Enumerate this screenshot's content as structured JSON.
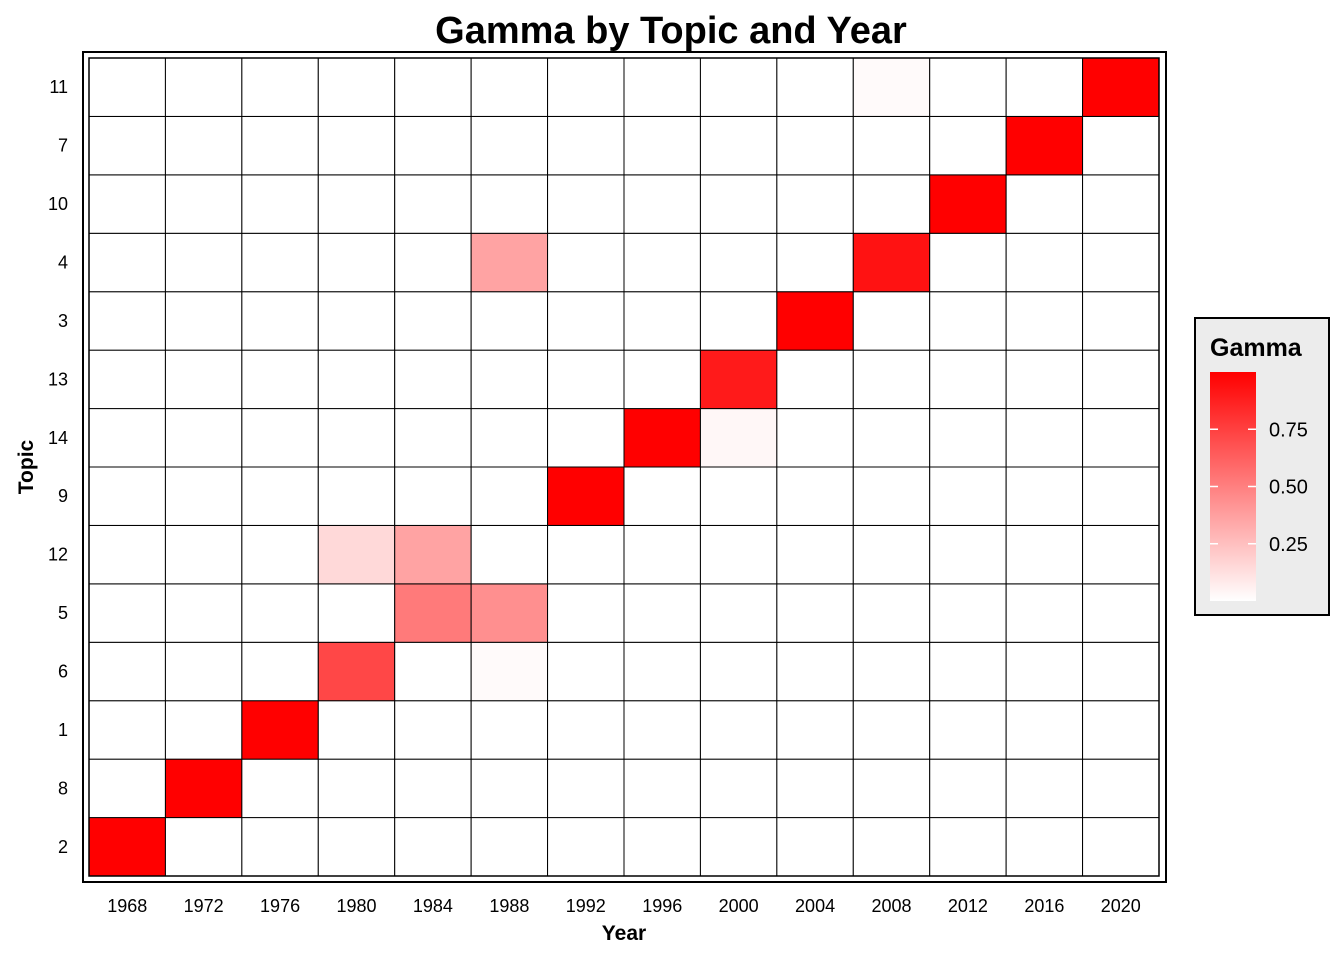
{
  "chart_data": {
    "type": "heatmap",
    "title": "Gamma by Topic and Year",
    "xlabel": "Year",
    "ylabel": "Topic",
    "x": [
      "1968",
      "1972",
      "1976",
      "1980",
      "1984",
      "1988",
      "1992",
      "1996",
      "2000",
      "2004",
      "2008",
      "2012",
      "2016",
      "2020"
    ],
    "y": [
      "2",
      "8",
      "1",
      "6",
      "5",
      "12",
      "9",
      "14",
      "13",
      "3",
      "4",
      "10",
      "7",
      "11"
    ],
    "values": [
      [
        1.0,
        0,
        0,
        0,
        0,
        0,
        0,
        0,
        0,
        0,
        0,
        0,
        0,
        0
      ],
      [
        0,
        1.0,
        0,
        0,
        0,
        0,
        0,
        0,
        0,
        0,
        0,
        0,
        0,
        0
      ],
      [
        0,
        0,
        1.0,
        0,
        0,
        0,
        0,
        0,
        0,
        0,
        0,
        0,
        0,
        0
      ],
      [
        0,
        0,
        0,
        0.72,
        0,
        0.02,
        0,
        0,
        0,
        0,
        0,
        0,
        0,
        0
      ],
      [
        0,
        0,
        0,
        0,
        0.52,
        0.44,
        0,
        0,
        0,
        0,
        0,
        0,
        0,
        0
      ],
      [
        0,
        0,
        0,
        0.15,
        0.36,
        0,
        0,
        0,
        0,
        0,
        0,
        0,
        0,
        0
      ],
      [
        0,
        0,
        0,
        0,
        0,
        0,
        1.0,
        0,
        0,
        0,
        0,
        0,
        0,
        0
      ],
      [
        0,
        0,
        0,
        0,
        0,
        0,
        0,
        1.0,
        0.03,
        0,
        0,
        0,
        0,
        0
      ],
      [
        0,
        0,
        0,
        0,
        0,
        0,
        0,
        0,
        0.9,
        0,
        0,
        0,
        0,
        0
      ],
      [
        0,
        0,
        0,
        0,
        0,
        0,
        0,
        0,
        0,
        1.0,
        0,
        0,
        0,
        0
      ],
      [
        0,
        0,
        0,
        0,
        0,
        0.36,
        0,
        0,
        0,
        0,
        0.93,
        0,
        0,
        0
      ],
      [
        0,
        0,
        0,
        0,
        0,
        0,
        0,
        0,
        0,
        0,
        0,
        1.0,
        0,
        0
      ],
      [
        0,
        0,
        0,
        0,
        0,
        0,
        0,
        0,
        0,
        0,
        0,
        0,
        1.0,
        0
      ],
      [
        0,
        0,
        0,
        0,
        0,
        0,
        0,
        0,
        0,
        0,
        0.02,
        0,
        0,
        1.0
      ]
    ],
    "color_scale": {
      "low": "#ffffff",
      "high": "#ff0000",
      "range": [
        0,
        1
      ]
    },
    "legend": {
      "title": "Gamma",
      "ticks": [
        0.25,
        0.5,
        0.75
      ],
      "tick_labels": [
        "0.25",
        "0.50",
        "0.75"
      ],
      "placement": "right"
    },
    "grid": true
  }
}
